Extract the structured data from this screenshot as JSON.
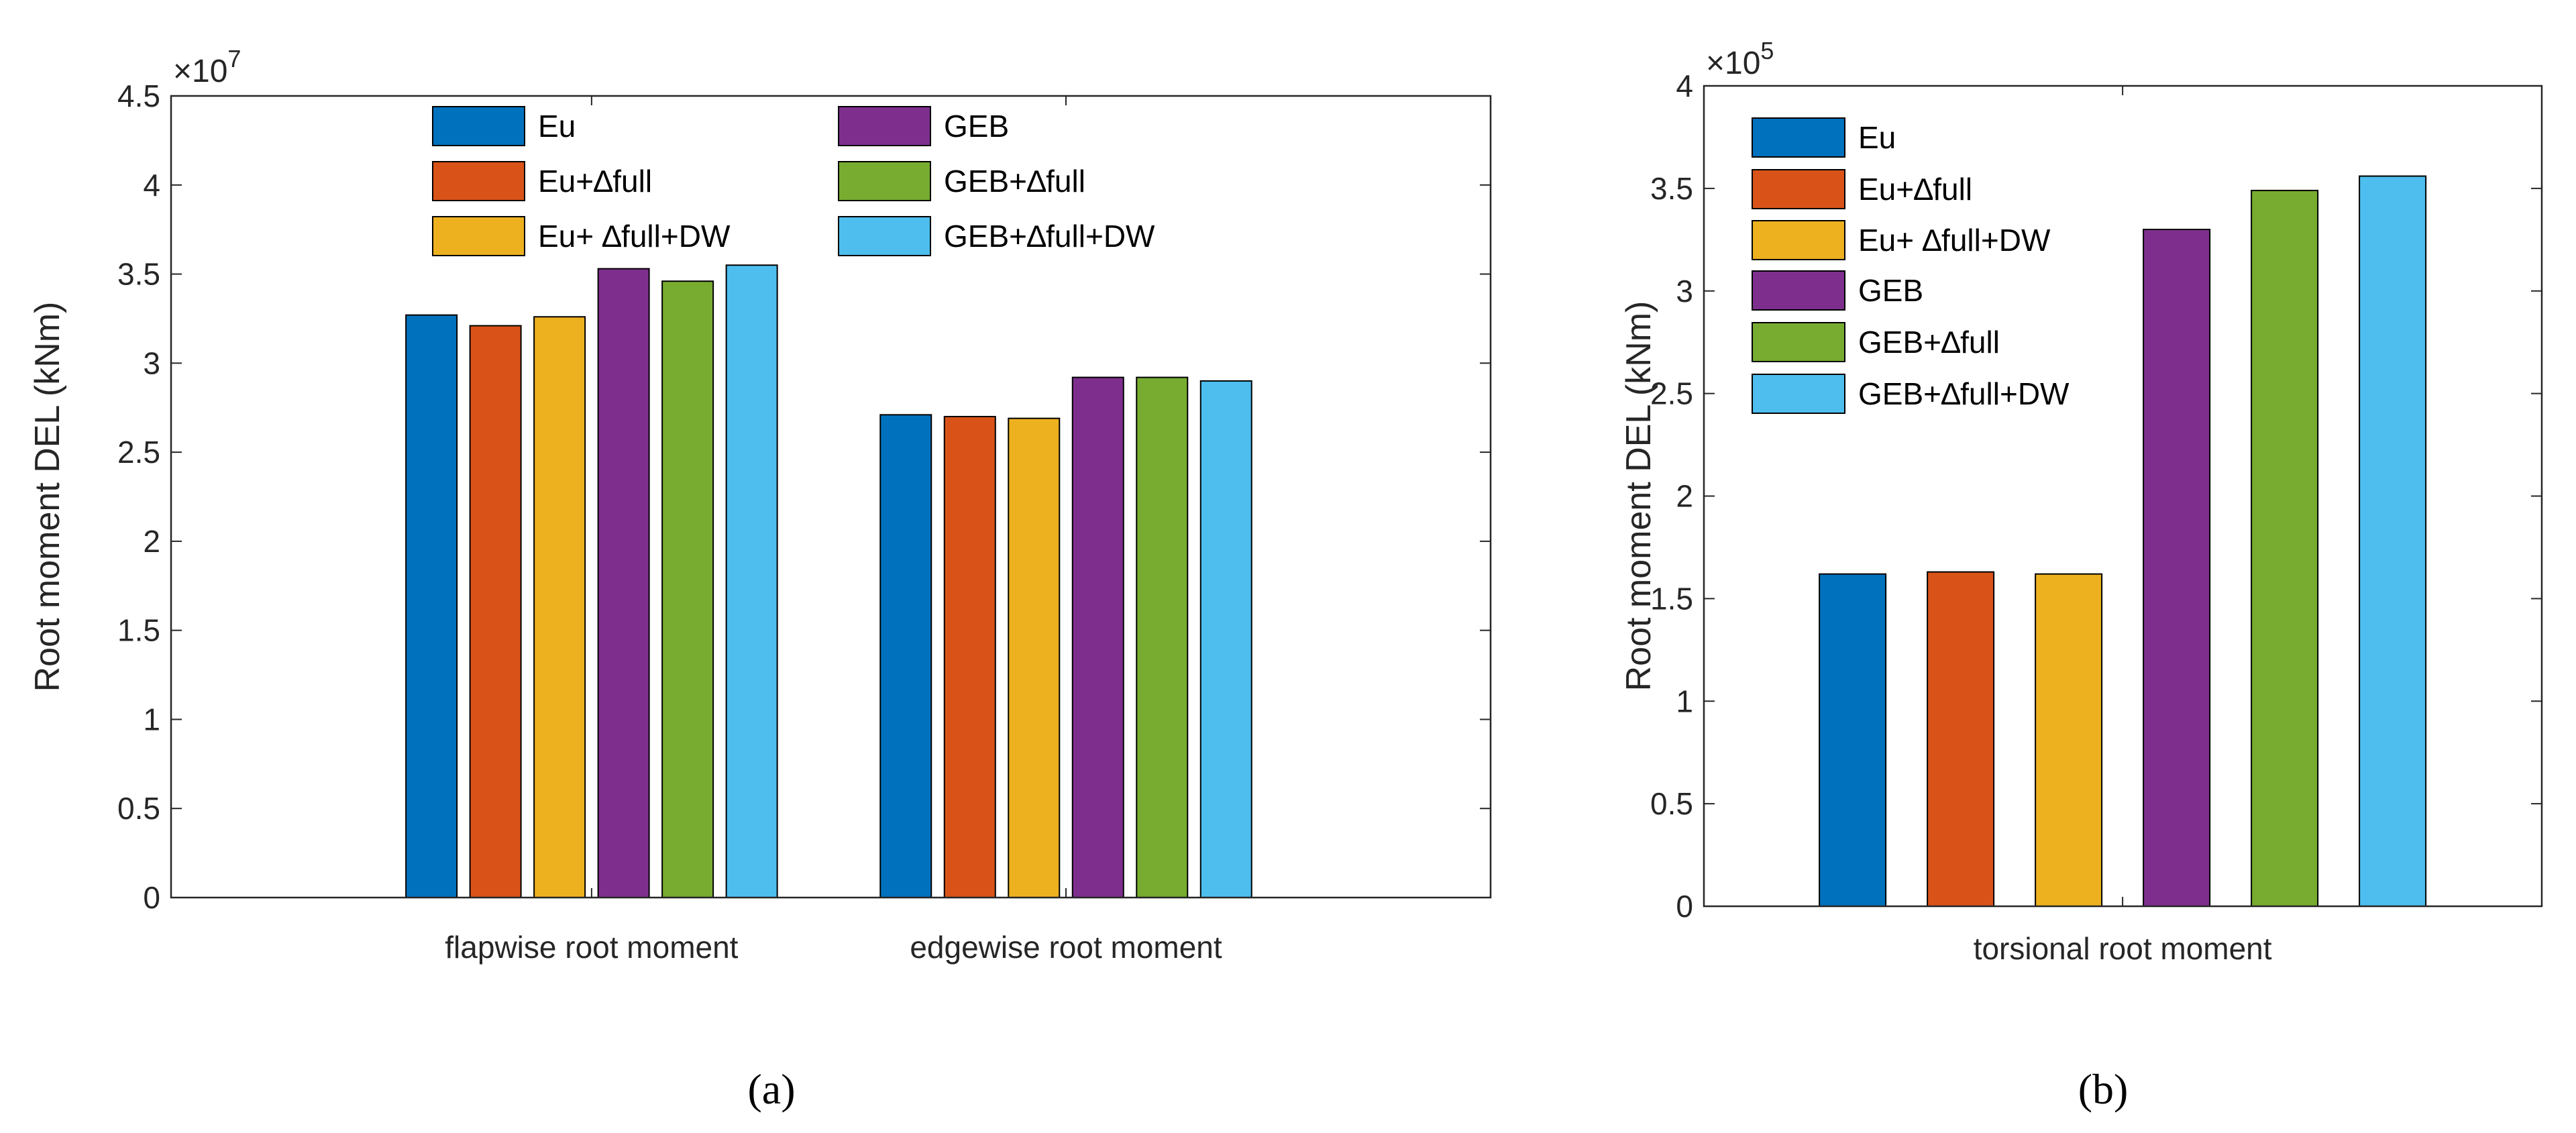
{
  "chart_data": [
    {
      "type": "bar",
      "panel_label": "(a)",
      "categories": [
        "flapwise root moment",
        "edgewise root moment"
      ],
      "ylabel": "Root moment DEL (kNm)",
      "xlabel": "",
      "y_multiplier": {
        "base": "×10",
        "exponent": "7"
      },
      "yticks": [
        "0",
        "0.5",
        "1",
        "1.5",
        "2",
        "2.5",
        "3",
        "3.5",
        "4",
        "4.5"
      ],
      "ylim": [
        0,
        4.5
      ],
      "grid": false,
      "legend_position": "top, two columns",
      "series": [
        {
          "name": "Eu",
          "color": "#0072BD",
          "values": [
            3.27,
            2.71
          ]
        },
        {
          "name": "Eu+∆full",
          "color": "#D95319",
          "values": [
            3.21,
            2.7
          ]
        },
        {
          "name": "Eu+ ∆full+DW",
          "color": "#EDB120",
          "values": [
            3.26,
            2.69
          ]
        },
        {
          "name": "GEB",
          "color": "#7E2F8E",
          "values": [
            3.53,
            2.92
          ]
        },
        {
          "name": "GEB+∆full",
          "color": "#77AC30",
          "values": [
            3.46,
            2.92
          ]
        },
        {
          "name": "GEB+∆full+DW",
          "color": "#4DBEEE",
          "values": [
            3.55,
            2.9
          ]
        }
      ]
    },
    {
      "type": "bar",
      "panel_label": "(b)",
      "categories": [
        "torsional root moment"
      ],
      "ylabel": "Root moment DEL (kNm)",
      "xlabel": "",
      "y_multiplier": {
        "base": "×10",
        "exponent": "5"
      },
      "yticks": [
        "0",
        "0.5",
        "1",
        "1.5",
        "2",
        "2.5",
        "3",
        "3.5",
        "4"
      ],
      "ylim": [
        0,
        4
      ],
      "grid": false,
      "legend_position": "top-left",
      "series": [
        {
          "name": "Eu",
          "color": "#0072BD",
          "values": [
            1.62
          ]
        },
        {
          "name": "Eu+∆full",
          "color": "#D95319",
          "values": [
            1.63
          ]
        },
        {
          "name": "Eu+ ∆full+DW",
          "color": "#EDB120",
          "values": [
            1.62
          ]
        },
        {
          "name": "GEB",
          "color": "#7E2F8E",
          "values": [
            3.3
          ]
        },
        {
          "name": "GEB+∆full",
          "color": "#77AC30",
          "values": [
            3.49
          ]
        },
        {
          "name": "GEB+∆full+DW",
          "color": "#4DBEEE",
          "values": [
            3.56
          ]
        }
      ]
    }
  ]
}
